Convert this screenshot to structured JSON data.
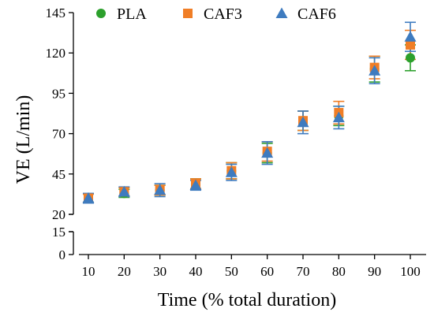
{
  "chart_data": {
    "type": "scatter",
    "xlabel": "Time (% total duration)",
    "ylabel": "VE (L/min)",
    "x_ticks": [
      10,
      20,
      30,
      40,
      50,
      60,
      70,
      80,
      90,
      100
    ],
    "y_ticks_upper": [
      20,
      45,
      70,
      95,
      120,
      145
    ],
    "y_ticks_lower": [
      0,
      15
    ],
    "y_axis_break": true,
    "grid": false,
    "legend_position": "top",
    "series": [
      {
        "name": "PLA",
        "marker": "circle",
        "color": "#2ca02c",
        "x": [
          10,
          20,
          30,
          40,
          50,
          60,
          70,
          80,
          90,
          100
        ],
        "y": [
          30,
          33,
          35,
          39,
          47,
          58,
          78,
          81,
          110,
          117
        ],
        "error": [
          2.5,
          2.5,
          3,
          3,
          5,
          6,
          6,
          6,
          8,
          8
        ]
      },
      {
        "name": "CAF3",
        "marker": "square",
        "color": "#f07e26",
        "x": [
          10,
          20,
          30,
          40,
          50,
          60,
          70,
          80,
          90,
          100
        ],
        "y": [
          30,
          34,
          35,
          39,
          47,
          59,
          78,
          83,
          111,
          125
        ],
        "error": [
          2.5,
          2.5,
          3,
          3,
          5,
          6,
          6,
          7,
          7,
          9
        ]
      },
      {
        "name": "CAF6",
        "marker": "triangle",
        "color": "#3e7bbf",
        "x": [
          10,
          20,
          30,
          40,
          50,
          60,
          70,
          80,
          90,
          100
        ],
        "y": [
          30,
          34,
          35,
          38,
          46,
          58,
          77,
          80,
          109,
          130
        ],
        "error": [
          3,
          3,
          4,
          3,
          5,
          7,
          7,
          7,
          8,
          9
        ]
      }
    ]
  }
}
